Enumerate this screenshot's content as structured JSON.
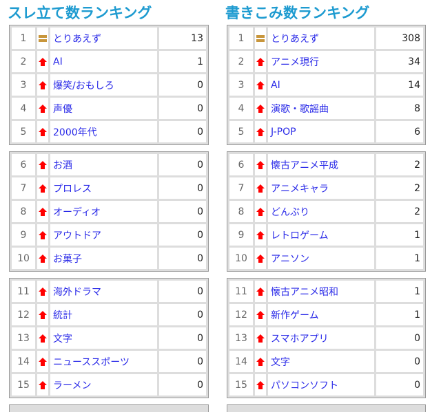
{
  "colors": {
    "title": "#1e9bd0",
    "link": "#2a2ae8",
    "up_arrow": "#ff0000",
    "same": "#c8963c"
  },
  "left": {
    "title": "スレ立て数ランキング",
    "groups": [
      [
        {
          "rank": "1",
          "trend": "same",
          "name": "とりあえず",
          "count": "13"
        },
        {
          "rank": "2",
          "trend": "up",
          "name": "AI",
          "count": "1"
        },
        {
          "rank": "3",
          "trend": "up",
          "name": "爆笑/おもしろ",
          "count": "0"
        },
        {
          "rank": "4",
          "trend": "up",
          "name": "声優",
          "count": "0"
        },
        {
          "rank": "5",
          "trend": "up",
          "name": "2000年代",
          "count": "0"
        }
      ],
      [
        {
          "rank": "6",
          "trend": "up",
          "name": "お酒",
          "count": "0"
        },
        {
          "rank": "7",
          "trend": "up",
          "name": "プロレス",
          "count": "0"
        },
        {
          "rank": "8",
          "trend": "up",
          "name": "オーディオ",
          "count": "0"
        },
        {
          "rank": "9",
          "trend": "up",
          "name": "アウトドア",
          "count": "0"
        },
        {
          "rank": "10",
          "trend": "up",
          "name": "お菓子",
          "count": "0"
        }
      ],
      [
        {
          "rank": "11",
          "trend": "up",
          "name": "海外ドラマ",
          "count": "0"
        },
        {
          "rank": "12",
          "trend": "up",
          "name": "統計",
          "count": "0"
        },
        {
          "rank": "13",
          "trend": "up",
          "name": "文字",
          "count": "0"
        },
        {
          "rank": "14",
          "trend": "up",
          "name": "ニューススポーツ",
          "count": "0"
        },
        {
          "rank": "15",
          "trend": "up",
          "name": "ラーメン",
          "count": "0"
        }
      ]
    ]
  },
  "right": {
    "title": "書きこみ数ランキング",
    "groups": [
      [
        {
          "rank": "1",
          "trend": "same",
          "name": "とりあえず",
          "count": "308"
        },
        {
          "rank": "2",
          "trend": "up",
          "name": "アニメ現行",
          "count": "34"
        },
        {
          "rank": "3",
          "trend": "up",
          "name": "AI",
          "count": "14"
        },
        {
          "rank": "4",
          "trend": "up",
          "name": "演歌・歌謡曲",
          "count": "8"
        },
        {
          "rank": "5",
          "trend": "up",
          "name": "J-POP",
          "count": "6"
        }
      ],
      [
        {
          "rank": "6",
          "trend": "up",
          "name": "懐古アニメ平成",
          "count": "2"
        },
        {
          "rank": "7",
          "trend": "up",
          "name": "アニメキャラ",
          "count": "2"
        },
        {
          "rank": "8",
          "trend": "up",
          "name": "どんぶり",
          "count": "2"
        },
        {
          "rank": "9",
          "trend": "up",
          "name": "レトロゲーム",
          "count": "1"
        },
        {
          "rank": "10",
          "trend": "up",
          "name": "アニソン",
          "count": "1"
        }
      ],
      [
        {
          "rank": "11",
          "trend": "up",
          "name": "懐古アニメ昭和",
          "count": "1"
        },
        {
          "rank": "12",
          "trend": "up",
          "name": "新作ゲーム",
          "count": "1"
        },
        {
          "rank": "13",
          "trend": "up",
          "name": "スマホアプリ",
          "count": "0"
        },
        {
          "rank": "14",
          "trend": "up",
          "name": "文字",
          "count": "0"
        },
        {
          "rank": "15",
          "trend": "up",
          "name": "パソコンソフト",
          "count": "0"
        }
      ]
    ]
  }
}
